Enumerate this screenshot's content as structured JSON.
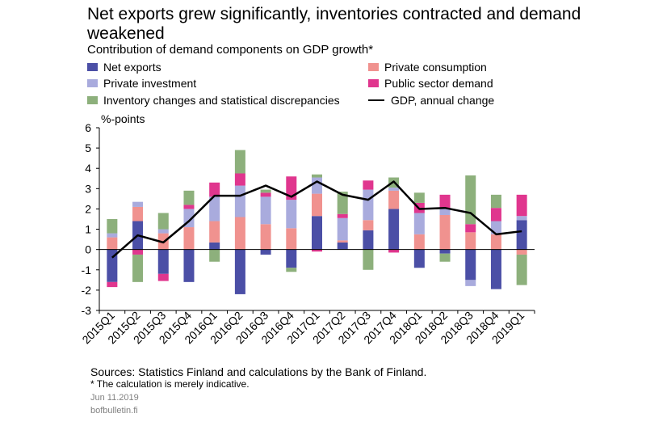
{
  "title": "Net exports grew significantly, inventories contracted and demand weakened",
  "subtitle": "Contribution of demand components on GDP growth*",
  "legend": [
    {
      "label": "Net exports",
      "color": "#4b4fa6",
      "kind": "bar"
    },
    {
      "label": "Private consumption",
      "color": "#f0928f",
      "kind": "bar"
    },
    {
      "label": "Private investment",
      "color": "#a9abdd",
      "kind": "bar"
    },
    {
      "label": "Public sector demand",
      "color": "#e0368e",
      "kind": "bar"
    },
    {
      "label": "Inventory changes and statistical discrepancies",
      "color": "#8db07c",
      "kind": "bar"
    },
    {
      "label": "GDP, annual change",
      "color": "#000000",
      "kind": "line"
    }
  ],
  "chart_data": {
    "type": "bar",
    "stacked": true,
    "ylabel": "%-points",
    "ylim": [
      -3,
      6
    ],
    "yticks": [
      6,
      5,
      4,
      3,
      2,
      1,
      0,
      -1,
      -2,
      -3
    ],
    "grid": false,
    "categories": [
      "2015Q1",
      "2015Q2",
      "2015Q3",
      "2015Q4",
      "2016Q1",
      "2016Q2",
      "2016Q3",
      "2016Q4",
      "2017Q1",
      "2017Q2",
      "2017Q3",
      "2017Q4",
      "2018Q1",
      "2018Q2",
      "2018Q3",
      "2018Q4",
      "2019Q1"
    ],
    "series": [
      {
        "name": "Net exports",
        "color": "#4b4fa6",
        "values": [
          -1.6,
          1.4,
          -1.2,
          -1.6,
          0.35,
          -2.2,
          -0.25,
          -0.9,
          1.65,
          0.35,
          0.95,
          2.0,
          -0.9,
          -0.2,
          -1.5,
          -1.95,
          1.45
        ]
      },
      {
        "name": "Private consumption",
        "color": "#f0928f",
        "values": [
          0.6,
          0.7,
          0.8,
          1.1,
          1.05,
          1.6,
          1.25,
          1.05,
          1.1,
          0.1,
          0.5,
          0.9,
          0.75,
          1.7,
          0.85,
          0.75,
          -0.25
        ]
      },
      {
        "name": "Private investment",
        "color": "#a9abdd",
        "values": [
          0.2,
          0.25,
          0.2,
          0.9,
          1.2,
          1.55,
          1.35,
          1.4,
          0.8,
          1.1,
          1.5,
          0.15,
          1.05,
          0.35,
          -0.3,
          0.65,
          0.2
        ]
      },
      {
        "name": "Public sector demand",
        "color": "#e0368e",
        "values": [
          -0.25,
          -0.25,
          -0.35,
          0.2,
          0.7,
          0.6,
          0.2,
          1.15,
          -0.1,
          0.2,
          0.45,
          -0.15,
          0.5,
          0.65,
          0.4,
          0.65,
          1.05
        ]
      },
      {
        "name": "Inventory changes and statistical discrepancies",
        "color": "#8db07c",
        "values": [
          0.7,
          -1.35,
          0.8,
          0.7,
          -0.6,
          1.15,
          0.15,
          -0.2,
          0.15,
          1.1,
          -1.0,
          0.5,
          0.5,
          -0.4,
          2.4,
          0.65,
          -1.5
        ]
      }
    ],
    "line": {
      "name": "GDP, annual change",
      "color": "#000000",
      "values": [
        -0.4,
        0.7,
        0.35,
        1.4,
        2.65,
        2.65,
        3.15,
        2.6,
        3.35,
        2.7,
        2.45,
        3.35,
        2.0,
        2.05,
        1.8,
        0.75,
        0.9
      ]
    }
  },
  "footer": {
    "sources": "Sources: Statistics Finland and calculations by the Bank of Finland.",
    "note": "* The calculation is merely indicative.",
    "date": "Jun 11.2019",
    "site": "bofbulletin.fi"
  }
}
